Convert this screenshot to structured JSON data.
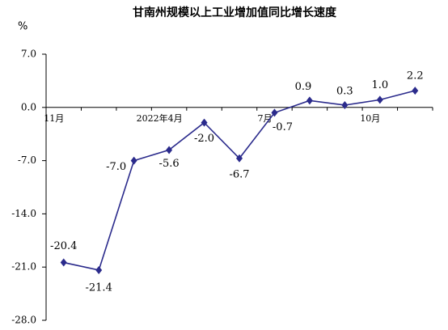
{
  "chart_data": {
    "type": "line",
    "title": "甘南州规模以上工业增加值同比增长速度",
    "y_label": "%",
    "categories": [
      "11月",
      null,
      null,
      "2022年4月",
      null,
      null,
      "7月",
      null,
      null,
      "10月",
      null
    ],
    "series": [
      {
        "name": null,
        "color": "#2b2b8c",
        "values": [
          -20.4,
          -21.4,
          -7.0,
          -5.6,
          -2.0,
          -6.7,
          -0.7,
          0.9,
          0.3,
          1.0,
          2.2
        ],
        "value_labels": [
          "-20.4",
          "-21.4",
          "-7.0",
          "-5.6",
          "-2.0",
          "-6.7",
          "-0.7",
          "0.9",
          "0.3",
          "1.0",
          "2.2"
        ]
      }
    ],
    "ylim": [
      -28,
      7
    ],
    "yticks": [
      {
        "value": 7,
        "label": "7.0"
      },
      {
        "value": 0,
        "label": "0.0"
      },
      {
        "value": -7,
        "label": "-7.0"
      },
      {
        "value": -14,
        "label": "-14.0"
      },
      {
        "value": -21,
        "label": "-21.0"
      },
      {
        "value": -28,
        "label": "-28.0"
      }
    ],
    "grid": false
  }
}
